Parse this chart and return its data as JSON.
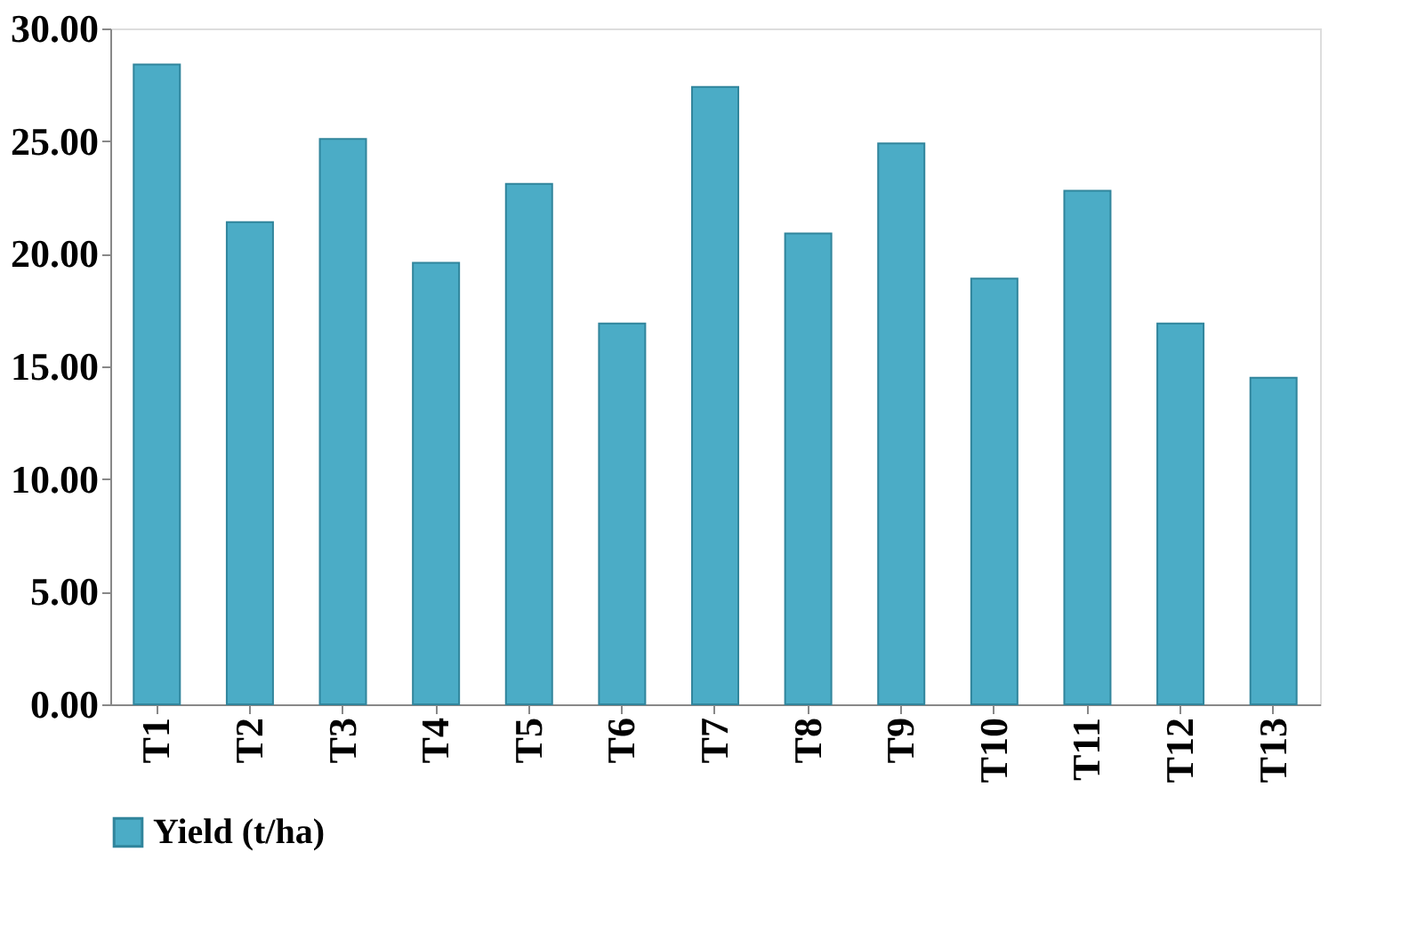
{
  "chart_data": {
    "type": "bar",
    "categories": [
      "T1",
      "T2",
      "T3",
      "T4",
      "T5",
      "T6",
      "T7",
      "T8",
      "T9",
      "T10",
      "T11",
      "T12",
      "T13"
    ],
    "series": [
      {
        "name": "Yield (t/ha)",
        "color": "#4bacc6",
        "values": [
          28.4,
          21.4,
          25.1,
          19.6,
          23.1,
          16.9,
          27.4,
          20.9,
          24.9,
          18.9,
          22.8,
          16.9,
          14.5
        ]
      }
    ],
    "ylim": [
      0,
      30
    ],
    "yticks": [
      {
        "value": 0,
        "label": "0.00"
      },
      {
        "value": 5,
        "label": "5.00"
      },
      {
        "value": 10,
        "label": "10.00"
      },
      {
        "value": 15,
        "label": "15.00"
      },
      {
        "value": 20,
        "label": "20.00"
      },
      {
        "value": 25,
        "label": "25.00"
      },
      {
        "value": 30,
        "label": "30.00"
      }
    ],
    "grid": false,
    "legend": "bottom"
  }
}
